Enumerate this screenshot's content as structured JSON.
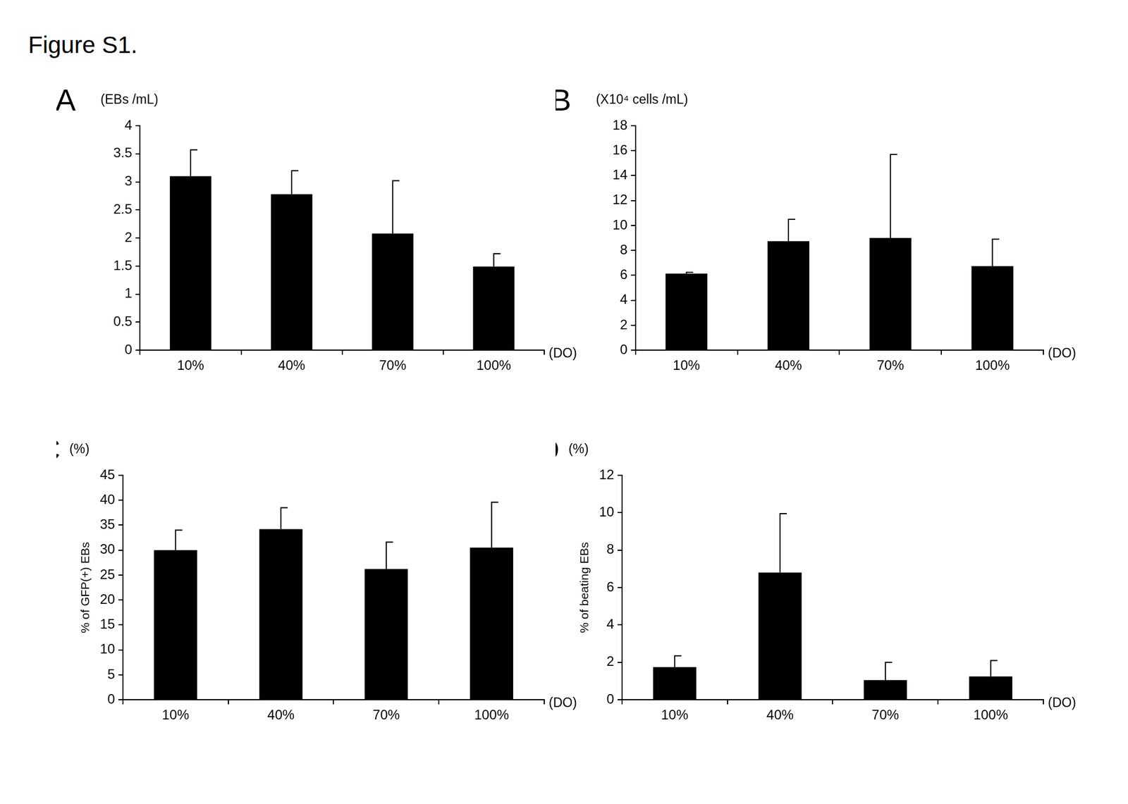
{
  "figure_title": "Figure S1.",
  "chart_data": [
    {
      "panel": "A",
      "type": "bar",
      "unit_label": "(EBs /mL)",
      "x_unit_label": "(DO)",
      "categories": [
        "10%",
        "40%",
        "70%",
        "100%"
      ],
      "values": [
        3.1,
        2.78,
        2.08,
        1.49
      ],
      "errors": [
        0.47,
        0.42,
        0.94,
        0.23
      ],
      "color": "#000000",
      "ylim": [
        0,
        4
      ],
      "yticks": [
        0,
        0.5,
        1,
        1.5,
        2,
        2.5,
        3,
        3.5,
        4
      ],
      "grid": false
    },
    {
      "panel": "B",
      "type": "bar",
      "unit_label": "(X10⁴ cells /mL)",
      "x_unit_label": "(DO)",
      "categories": [
        "10%",
        "40%",
        "70%",
        "100%"
      ],
      "values": [
        6.15,
        8.75,
        9.0,
        6.75
      ],
      "errors": [
        0.1,
        1.75,
        6.7,
        2.15
      ],
      "color": "#000000",
      "ylim": [
        0,
        18
      ],
      "yticks": [
        0,
        2,
        4,
        6,
        8,
        10,
        12,
        14,
        16,
        18
      ],
      "grid": false
    },
    {
      "panel": "C",
      "type": "bar",
      "unit_label": "(%)",
      "y_label": "% of GFP(+) EBs",
      "x_unit_label": "(DO)",
      "categories": [
        "10%",
        "40%",
        "70%",
        "100%"
      ],
      "values": [
        30,
        34.2,
        26.2,
        30.5
      ],
      "errors": [
        4,
        4.3,
        5.4,
        9.1
      ],
      "color": "#000000",
      "ylim": [
        0,
        45
      ],
      "yticks": [
        0,
        5,
        10,
        15,
        20,
        25,
        30,
        35,
        40,
        45
      ],
      "grid": false
    },
    {
      "panel": "D",
      "type": "bar",
      "unit_label": "(%)",
      "y_label": "% of beating EBs",
      "x_unit_label": "(DO)",
      "categories": [
        "10%",
        "40%",
        "70%",
        "100%"
      ],
      "values": [
        1.75,
        6.8,
        1.05,
        1.25
      ],
      "errors": [
        0.6,
        3.15,
        0.95,
        0.85
      ],
      "color": "#000000",
      "ylim": [
        0,
        12
      ],
      "yticks": [
        0,
        2,
        4,
        6,
        8,
        10,
        12
      ],
      "grid": false
    }
  ]
}
